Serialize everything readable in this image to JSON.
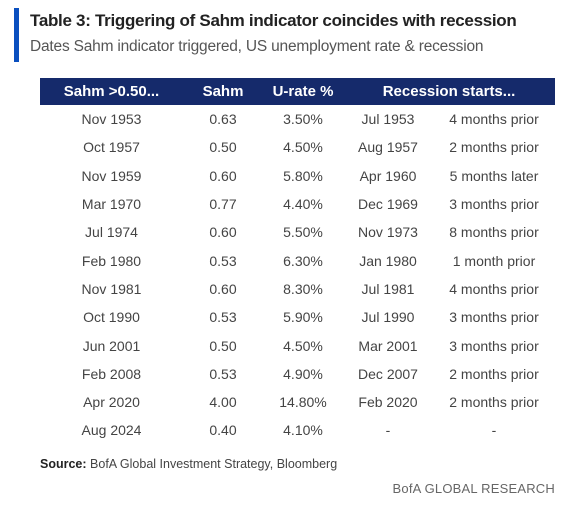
{
  "header": {
    "title": "Table 3: Triggering of Sahm indicator coincides with recession",
    "subtitle": "Dates Sahm indicator triggered, US unemployment rate & recession"
  },
  "table": {
    "columns": [
      "Sahm >0.50...",
      "Sahm",
      "U-rate %",
      "Recession starts..."
    ],
    "rows": [
      [
        "Nov 1953",
        "0.63",
        "3.50%",
        "Jul 1953",
        "4 months prior"
      ],
      [
        "Oct 1957",
        "0.50",
        "4.50%",
        "Aug 1957",
        "2 months prior"
      ],
      [
        "Nov 1959",
        "0.60",
        "5.80%",
        "Apr 1960",
        "5 months later"
      ],
      [
        "Mar 1970",
        "0.77",
        "4.40%",
        "Dec 1969",
        "3 months prior"
      ],
      [
        "Jul 1974",
        "0.60",
        "5.50%",
        "Nov 1973",
        "8 months prior"
      ],
      [
        "Feb 1980",
        "0.53",
        "6.30%",
        "Jan 1980",
        "1 month prior"
      ],
      [
        "Nov 1981",
        "0.60",
        "8.30%",
        "Jul 1981",
        "4 months prior"
      ],
      [
        "Oct 1990",
        "0.53",
        "5.90%",
        "Jul 1990",
        "3 months prior"
      ],
      [
        "Jun 2001",
        "0.50",
        "4.50%",
        "Mar 2001",
        "3 months prior"
      ],
      [
        "Feb 2008",
        "0.53",
        "4.90%",
        "Dec 2007",
        "2 months prior"
      ],
      [
        "Apr 2020",
        "4.00",
        "14.80%",
        "Feb 2020",
        "2 months prior"
      ],
      [
        "Aug 2024",
        "0.40",
        "4.10%",
        "-",
        "-"
      ]
    ]
  },
  "source": {
    "label": "Source:",
    "text": "BofA Global Investment Strategy, Bloomberg"
  },
  "footer": "BofA GLOBAL RESEARCH"
}
